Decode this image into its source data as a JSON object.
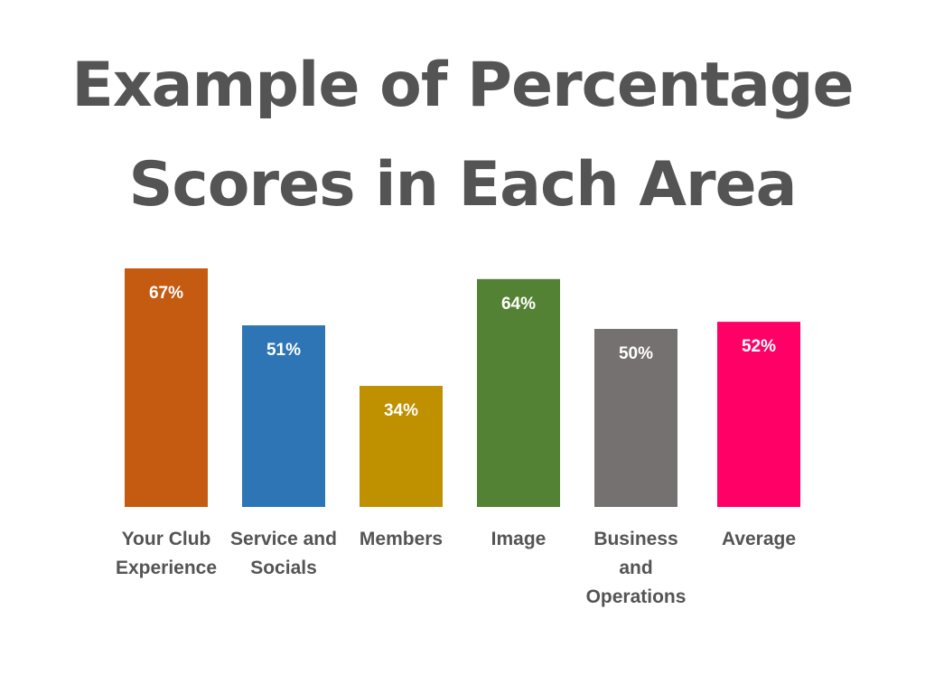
{
  "title_lines": [
    "Example of Percentage",
    "Scores in Each Area"
  ],
  "chart_data": {
    "type": "bar",
    "title": "Example of Percentage Scores in Each Area",
    "categories": [
      [
        "Your Club",
        "Experience"
      ],
      [
        "Service and",
        "Socials"
      ],
      [
        "Members"
      ],
      [
        "Image"
      ],
      [
        "Business",
        "and",
        "Operations"
      ],
      [
        "Average"
      ]
    ],
    "values": [
      67,
      51,
      34,
      64,
      50,
      52
    ],
    "value_labels": [
      "67%",
      "51%",
      "34%",
      "64%",
      "50%",
      "52%"
    ],
    "colors": [
      "#c55a11",
      "#2e75b6",
      "#bf9000",
      "#548235",
      "#767171",
      "#ff0066"
    ],
    "label_color": "#ffffff",
    "category_label_color": "#545454",
    "ylim": [
      0,
      100
    ],
    "grid": false,
    "legend": false
  }
}
